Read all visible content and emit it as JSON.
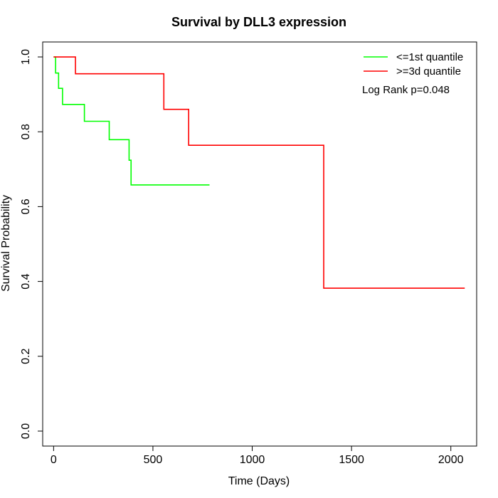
{
  "chart_data": {
    "type": "line",
    "title": "Survival by DLL3 expression",
    "xlabel": "Time (Days)",
    "ylabel": "Survival Probability",
    "xlim": [
      -55,
      2130
    ],
    "ylim": [
      -0.04,
      1.04
    ],
    "x_ticks": [
      0,
      500,
      1000,
      1500,
      2000
    ],
    "x_tick_labels": [
      "0",
      "500",
      "1000",
      "1500",
      "2000"
    ],
    "y_ticks": [
      0.0,
      0.2,
      0.4,
      0.6,
      0.8,
      1.0
    ],
    "y_tick_labels": [
      "0.0",
      "0.2",
      "0.4",
      "0.6",
      "0.8",
      "1.0"
    ],
    "grid": false,
    "legend_position": "top-right",
    "series": [
      {
        "name": "<=1st quantile",
        "color": "#00ff00",
        "step": true,
        "x": [
          0,
          10,
          25,
          45,
          155,
          280,
          380,
          390,
          785
        ],
        "y": [
          1.0,
          0.957,
          0.916,
          0.873,
          0.828,
          0.779,
          0.724,
          0.658,
          0.658
        ]
      },
      {
        "name": ">=3d quantile",
        "color": "#ff0000",
        "step": true,
        "x": [
          0,
          110,
          555,
          680,
          1360,
          2070
        ],
        "y": [
          1.0,
          0.955,
          0.86,
          0.764,
          0.382,
          0.382
        ]
      }
    ],
    "annotation": "Log Rank p=0.048"
  }
}
